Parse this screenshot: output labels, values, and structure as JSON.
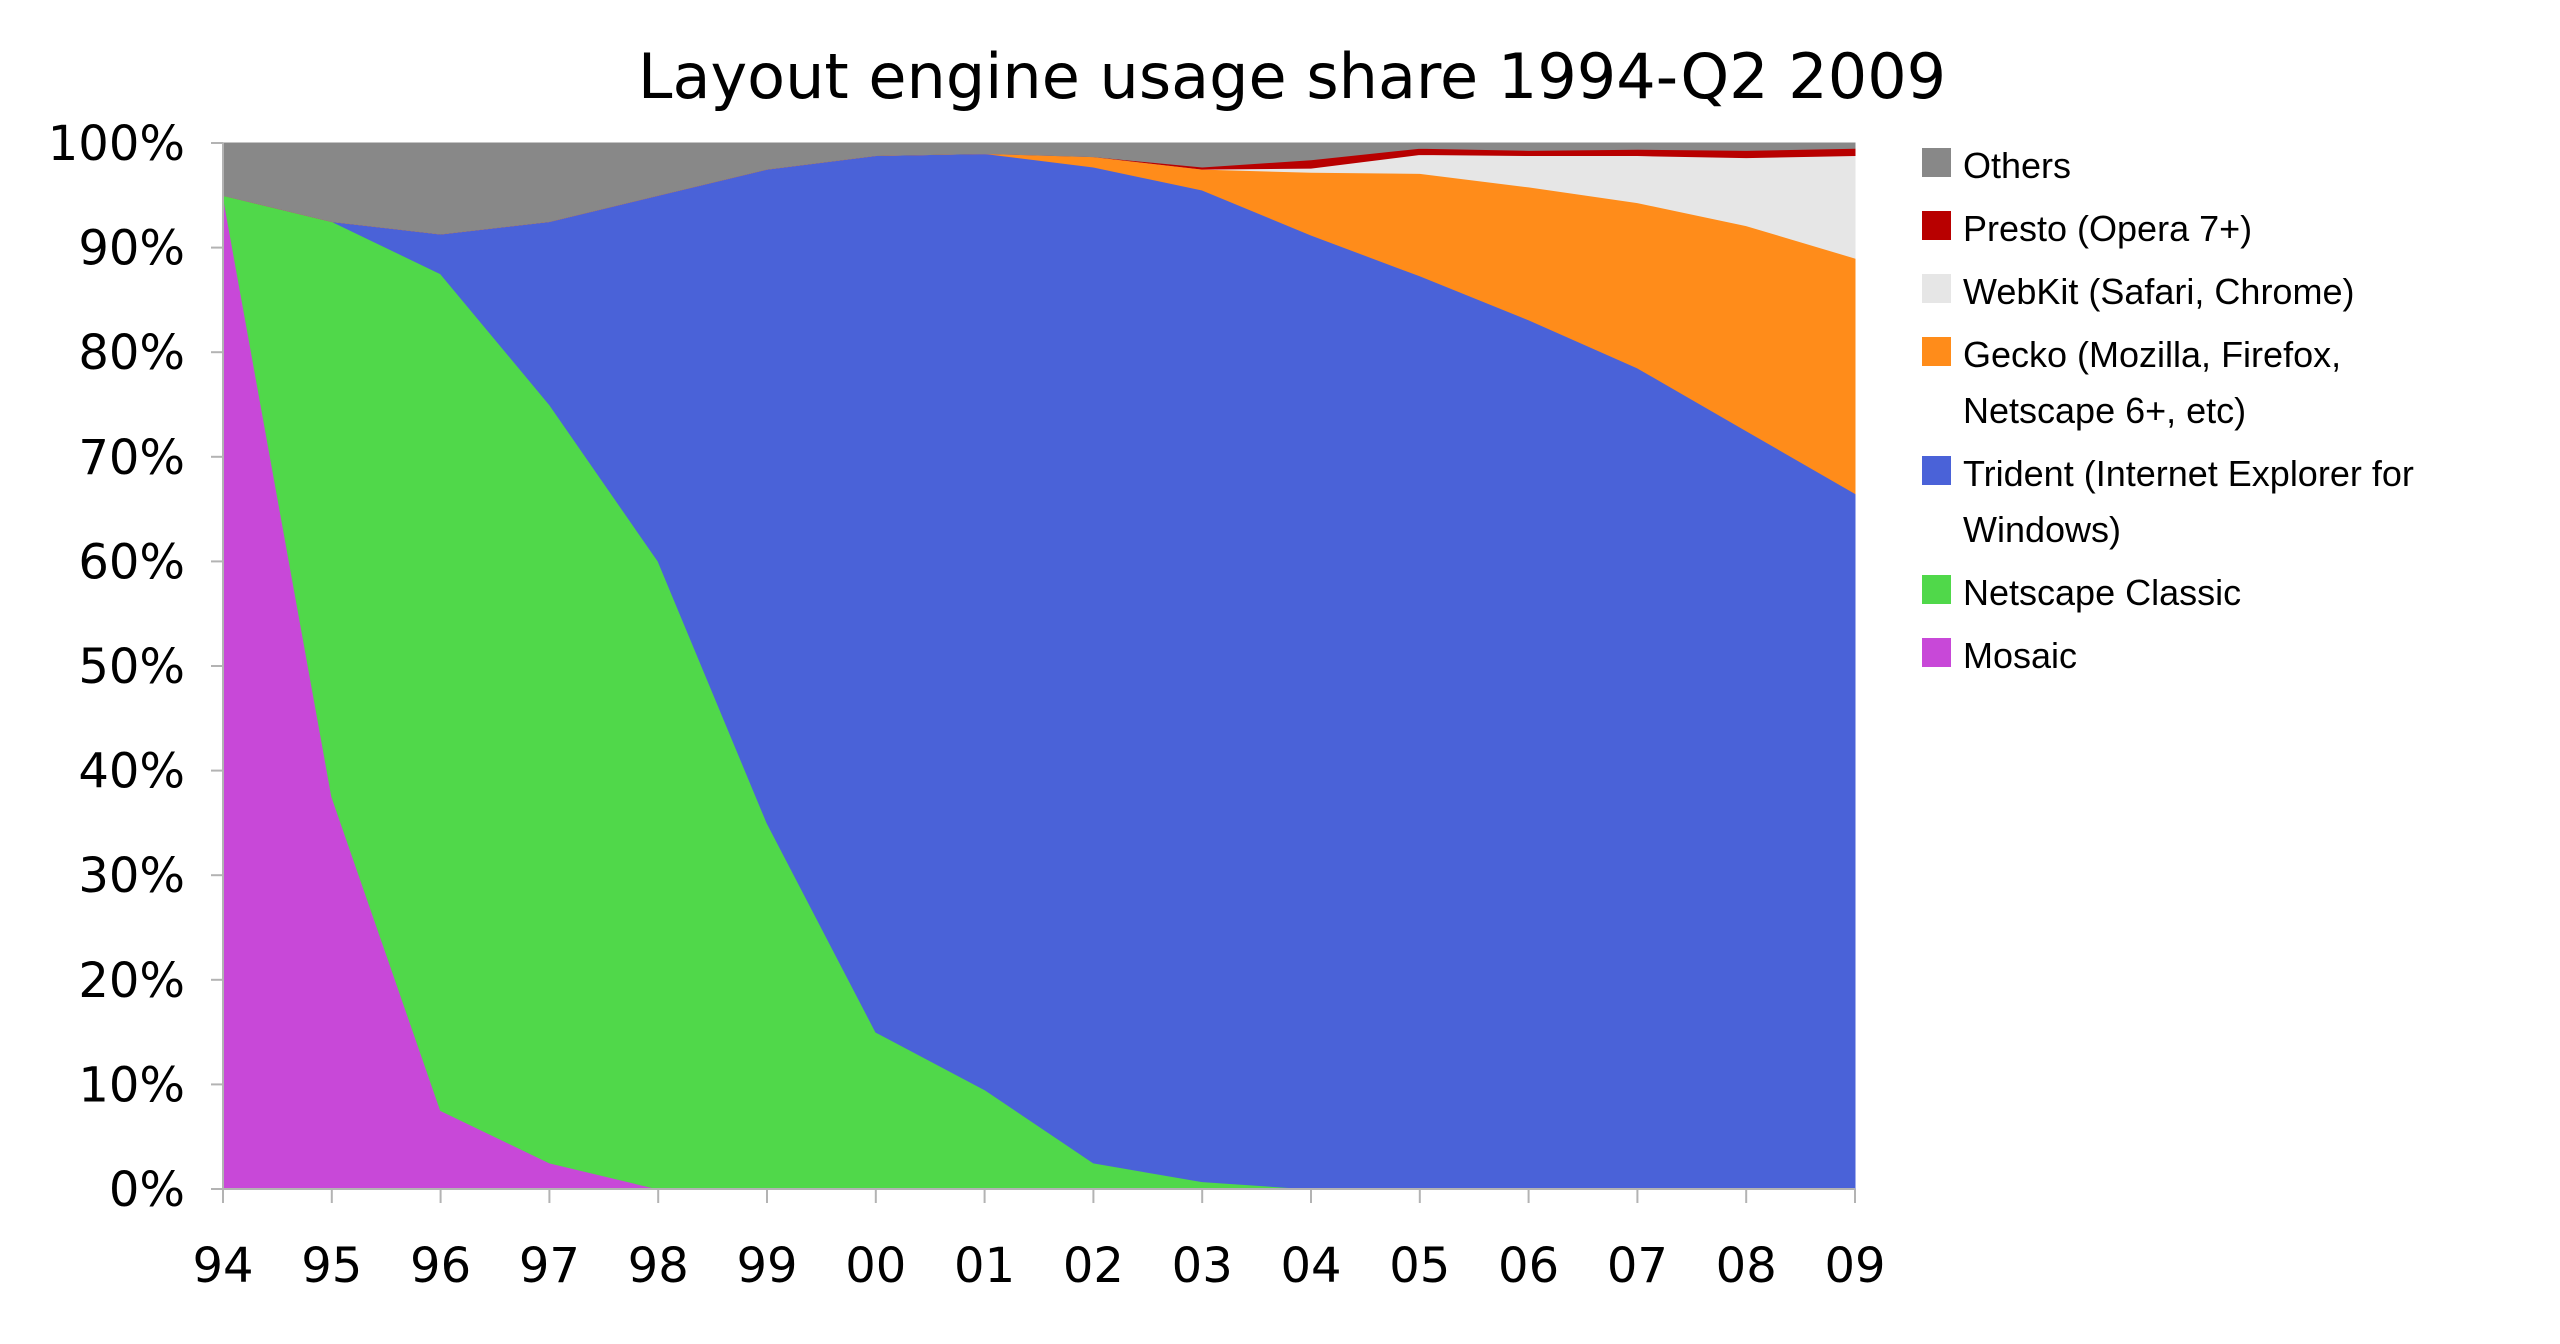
{
  "chart_data": {
    "type": "area",
    "stacked": true,
    "title": "Layout engine usage share 1994-Q2 2009",
    "xlabel": "",
    "ylabel": "",
    "ylim": [
      0,
      100
    ],
    "grid": false,
    "legend_position": "right",
    "categories": [
      "94",
      "95",
      "96",
      "97",
      "98",
      "99",
      "00",
      "01",
      "02",
      "03",
      "04",
      "05",
      "06",
      "07",
      "08",
      "09"
    ],
    "yticks": [
      "0%",
      "10%",
      "20%",
      "30%",
      "40%",
      "50%",
      "60%",
      "70%",
      "80%",
      "90%",
      "100%"
    ],
    "series": [
      {
        "name": "Mosaic",
        "color": "#c848d8",
        "values": [
          95,
          37.5,
          7.5,
          2.5,
          0,
          0,
          0,
          0,
          0,
          0,
          0,
          0,
          0,
          0,
          0,
          0
        ]
      },
      {
        "name": "Netscape Classic",
        "color": "#50d84a",
        "values": [
          0,
          55,
          80,
          72.5,
          60,
          35,
          15,
          9.5,
          2.5,
          0.7,
          0,
          0,
          0,
          0,
          0,
          0
        ]
      },
      {
        "name": "Trident (Internet Explorer for Windows)",
        "color": "#4a62d8",
        "values": [
          0,
          0,
          3.8,
          17.5,
          35,
          62.5,
          83.8,
          89.5,
          95.2,
          94.8,
          91.2,
          87.3,
          83.1,
          78.5,
          72.5,
          66.5
        ]
      },
      {
        "name": "Gecko (Mozilla, Firefox, Netscape 6+, etc)",
        "color": "#ff8c1a",
        "values": [
          0,
          0,
          0,
          0,
          0,
          0,
          0,
          0,
          1,
          2,
          6,
          9.8,
          12.7,
          15.8,
          19.6,
          22.5
        ]
      },
      {
        "name": "WebKit (Safari, Chrome)",
        "color": "#e6e6e6",
        "values": [
          0,
          0,
          0,
          0,
          0,
          0,
          0,
          0,
          0,
          0,
          0.4,
          1.8,
          3,
          4.5,
          6.5,
          9.8
        ]
      },
      {
        "name": "Presto (Opera 7+)",
        "color": "#b80000",
        "values": [
          0,
          0,
          0,
          0,
          0,
          0,
          0,
          0,
          0,
          0.2,
          0.8,
          0.6,
          0.5,
          0.6,
          0.7,
          0.7
        ]
      },
      {
        "name": "Others",
        "color": "#888888",
        "values": [
          5,
          7.5,
          8.7,
          7.5,
          5,
          2.5,
          1.2,
          1,
          1.3,
          2.3,
          1.6,
          0.5,
          0.7,
          0.6,
          0.7,
          0.5
        ]
      }
    ],
    "legend_order": [
      "Others",
      "Presto (Opera 7+)",
      "WebKit (Safari, Chrome)",
      "Gecko (Mozilla, Firefox, Netscape 6+, etc)",
      "Trident (Internet Explorer for Windows)",
      "Netscape Classic",
      "Mosaic"
    ],
    "legend_lines": {
      "Others": [
        "Others"
      ],
      "Presto (Opera 7+)": [
        "Presto (Opera 7+)"
      ],
      "WebKit (Safari, Chrome)": [
        "WebKit (Safari, Chrome)"
      ],
      "Gecko (Mozilla, Firefox, Netscape 6+, etc)": [
        "Gecko (Mozilla, Firefox,",
        "Netscape 6+, etc)"
      ],
      "Trident (Internet Explorer for Windows)": [
        "Trident (Internet Explorer for",
        "Windows)"
      ],
      "Netscape Classic": [
        "Netscape Classic"
      ],
      "Mosaic": [
        "Mosaic"
      ]
    }
  }
}
